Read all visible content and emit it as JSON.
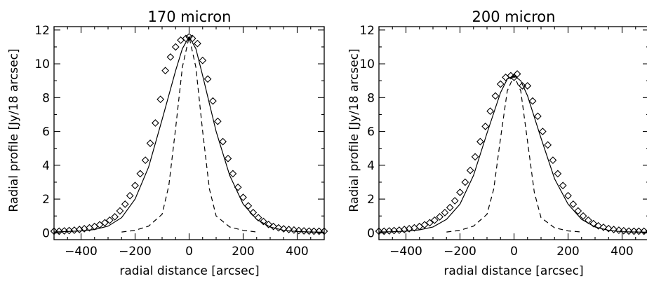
{
  "chart_data": [
    {
      "type": "scatter",
      "title": "170 micron",
      "xlabel": "radial distance [arcsec]",
      "ylabel": "Radial profile [Jy/18 arcsec]",
      "xlim": [
        -500,
        500
      ],
      "ylim": [
        -0.4,
        12.2
      ],
      "xticks": [
        -400,
        -200,
        0,
        200,
        400
      ],
      "yticks": [
        0,
        2,
        4,
        6,
        8,
        10,
        12
      ],
      "grid": false,
      "legend": "none",
      "series": [
        {
          "style": "diamond-markers",
          "x": [
            -500,
            -481,
            -462,
            -444,
            -425,
            -406,
            -388,
            -369,
            -350,
            -331,
            -312,
            -294,
            -275,
            -256,
            -237,
            -219,
            -200,
            -181,
            -162,
            -144,
            -125,
            -106,
            -88,
            -69,
            -50,
            -31,
            -12,
            0,
            12,
            31,
            50,
            69,
            88,
            106,
            125,
            144,
            162,
            181,
            200,
            219,
            237,
            256,
            275,
            294,
            312,
            331,
            350,
            369,
            388,
            406,
            425,
            444,
            462,
            481,
            500
          ],
          "y": [
            0.1,
            0.1,
            0.12,
            0.14,
            0.16,
            0.2,
            0.25,
            0.3,
            0.38,
            0.48,
            0.6,
            0.75,
            0.95,
            1.3,
            1.7,
            2.2,
            2.8,
            3.5,
            4.3,
            5.3,
            6.5,
            7.9,
            9.6,
            10.4,
            11.0,
            11.4,
            11.5,
            11.6,
            11.5,
            11.2,
            10.2,
            9.1,
            7.8,
            6.6,
            5.4,
            4.4,
            3.5,
            2.7,
            2.1,
            1.6,
            1.2,
            0.9,
            0.68,
            0.5,
            0.38,
            0.3,
            0.24,
            0.2,
            0.17,
            0.14,
            0.12,
            0.11,
            0.1,
            0.1,
            0.1
          ]
        },
        {
          "style": "solid-line",
          "x": [
            -500,
            -450,
            -400,
            -350,
            -300,
            -250,
            -200,
            -150,
            -100,
            -50,
            -25,
            0,
            25,
            50,
            100,
            150,
            200,
            250,
            300,
            350,
            400,
            450,
            500
          ],
          "y": [
            0.05,
            0.08,
            0.12,
            0.2,
            0.4,
            0.9,
            2.0,
            3.9,
            6.7,
            9.6,
            10.9,
            11.6,
            10.9,
            9.3,
            6.0,
            3.4,
            1.7,
            0.8,
            0.35,
            0.15,
            0.08,
            0.05,
            0.04
          ]
        },
        {
          "style": "dashed-line",
          "x": [
            -250,
            -200,
            -150,
            -100,
            -75,
            -50,
            -25,
            0,
            25,
            50,
            75,
            100,
            150,
            200,
            250
          ],
          "y": [
            0.05,
            0.15,
            0.4,
            1.1,
            2.8,
            6.2,
            9.8,
            11.6,
            9.8,
            6.0,
            2.6,
            1.0,
            0.35,
            0.15,
            0.05
          ]
        }
      ]
    },
    {
      "type": "scatter",
      "title": "200 micron",
      "xlabel": "radial distance [arcsec]",
      "ylabel": "Radial profile [Jy/18 arcsec]",
      "xlim": [
        -500,
        500
      ],
      "ylim": [
        -0.4,
        12.2
      ],
      "xticks": [
        -400,
        -200,
        0,
        200,
        400
      ],
      "yticks": [
        0,
        2,
        4,
        6,
        8,
        10,
        12
      ],
      "grid": false,
      "legend": "none",
      "series": [
        {
          "style": "diamond-markers",
          "x": [
            -500,
            -481,
            -462,
            -444,
            -425,
            -406,
            -388,
            -369,
            -350,
            -331,
            -312,
            -294,
            -275,
            -256,
            -237,
            -219,
            -200,
            -181,
            -162,
            -144,
            -125,
            -106,
            -88,
            -69,
            -50,
            -31,
            -12,
            0,
            12,
            31,
            50,
            69,
            88,
            106,
            125,
            144,
            162,
            181,
            200,
            219,
            237,
            256,
            275,
            294,
            312,
            331,
            350,
            369,
            388,
            406,
            425,
            444,
            462,
            481,
            500
          ],
          "y": [
            0.1,
            0.1,
            0.12,
            0.14,
            0.16,
            0.2,
            0.25,
            0.3,
            0.38,
            0.48,
            0.6,
            0.75,
            0.95,
            1.2,
            1.5,
            1.9,
            2.4,
            3.0,
            3.7,
            4.5,
            5.4,
            6.3,
            7.2,
            8.1,
            8.8,
            9.2,
            9.3,
            9.2,
            9.4,
            8.7,
            8.7,
            7.8,
            6.9,
            6.0,
            5.2,
            4.3,
            3.5,
            2.8,
            2.2,
            1.7,
            1.3,
            1.0,
            0.75,
            0.55,
            0.42,
            0.33,
            0.26,
            0.2,
            0.16,
            0.13,
            0.11,
            0.1,
            0.1,
            0.1,
            0.1
          ]
        },
        {
          "style": "solid-line",
          "x": [
            -500,
            -450,
            -400,
            -350,
            -300,
            -250,
            -200,
            -150,
            -100,
            -50,
            -25,
            0,
            25,
            50,
            100,
            150,
            200,
            250,
            300,
            350,
            400,
            450,
            500
          ],
          "y": [
            0.05,
            0.07,
            0.1,
            0.18,
            0.35,
            0.8,
            1.7,
            3.4,
            5.9,
            8.3,
            9.1,
            9.3,
            9.0,
            8.1,
            5.6,
            3.2,
            1.7,
            0.8,
            0.35,
            0.15,
            0.07,
            0.05,
            0.04
          ]
        },
        {
          "style": "dashed-line",
          "x": [
            -250,
            -200,
            -150,
            -100,
            -75,
            -50,
            -25,
            0,
            25,
            50,
            75,
            100,
            150,
            200,
            250
          ],
          "y": [
            0.05,
            0.15,
            0.4,
            1.1,
            2.6,
            5.6,
            8.4,
            9.3,
            8.4,
            5.4,
            2.4,
            0.9,
            0.3,
            0.12,
            0.05
          ]
        }
      ]
    }
  ]
}
